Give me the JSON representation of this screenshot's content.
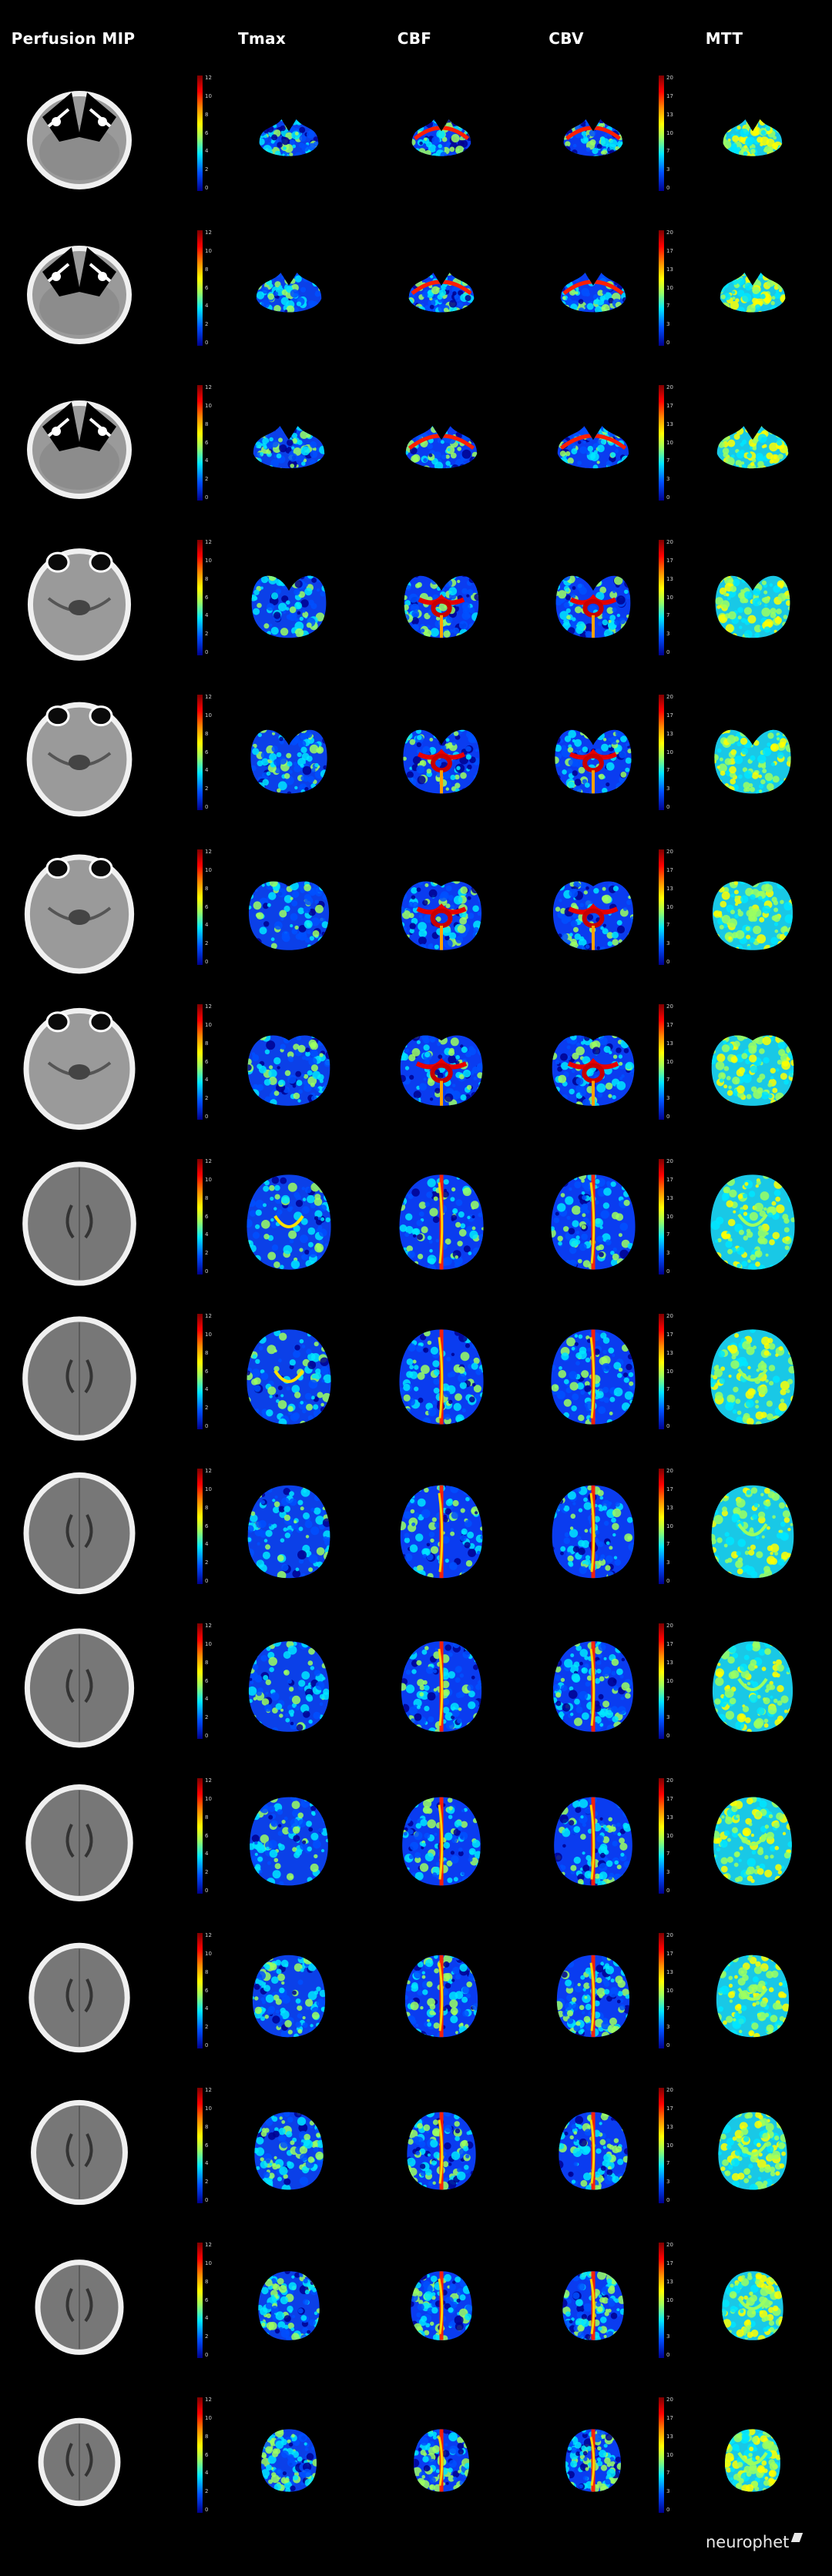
{
  "columns": {
    "mip": "Perfusion MIP",
    "tmax": "Tmax",
    "cbf": "CBF",
    "cbv": "CBV",
    "mtt": "MTT"
  },
  "colorbars": {
    "tmax_ticks": [
      "12",
      "10",
      "8",
      "6",
      "4",
      "2",
      "0"
    ],
    "mtt_ticks": [
      "20",
      "17",
      "13",
      "10",
      "7",
      "3",
      "0"
    ]
  },
  "colormap": [
    "#00008f",
    "#0050ff",
    "#00e6ff",
    "#9cff60",
    "#ffff00",
    "#ff8a00",
    "#ff0000",
    "#7f0000"
  ],
  "slices": [
    {
      "shape": "cerebellum",
      "mip_style": "skullbase",
      "size": 0.58
    },
    {
      "shape": "cerebellum",
      "mip_style": "skullbase",
      "size": 0.64
    },
    {
      "shape": "cerebellum",
      "mip_style": "skullbase",
      "size": 0.7
    },
    {
      "shape": "temporal",
      "mip_style": "orbits",
      "size": 0.78
    },
    {
      "shape": "temporal",
      "mip_style": "orbits",
      "size": 0.8
    },
    {
      "shape": "midbrain",
      "mip_style": "orbits",
      "size": 0.84
    },
    {
      "shape": "midbrain",
      "mip_style": "orbits",
      "size": 0.86
    },
    {
      "shape": "ventricles",
      "mip_style": "brain",
      "size": 0.88
    },
    {
      "shape": "ventricles",
      "mip_style": "brain",
      "size": 0.88
    },
    {
      "shape": "vertex",
      "mip_style": "brain",
      "size": 0.86
    },
    {
      "shape": "vertex",
      "mip_style": "brain",
      "size": 0.84
    },
    {
      "shape": "vertex",
      "mip_style": "brain",
      "size": 0.82
    },
    {
      "shape": "vertex",
      "mip_style": "brain",
      "size": 0.76
    },
    {
      "shape": "vertex",
      "mip_style": "brain",
      "size": 0.72
    },
    {
      "shape": "vertex",
      "mip_style": "brain",
      "size": 0.64
    },
    {
      "shape": "vertex",
      "mip_style": "brain",
      "size": 0.58
    }
  ],
  "logo": {
    "text": "neurophet"
  }
}
